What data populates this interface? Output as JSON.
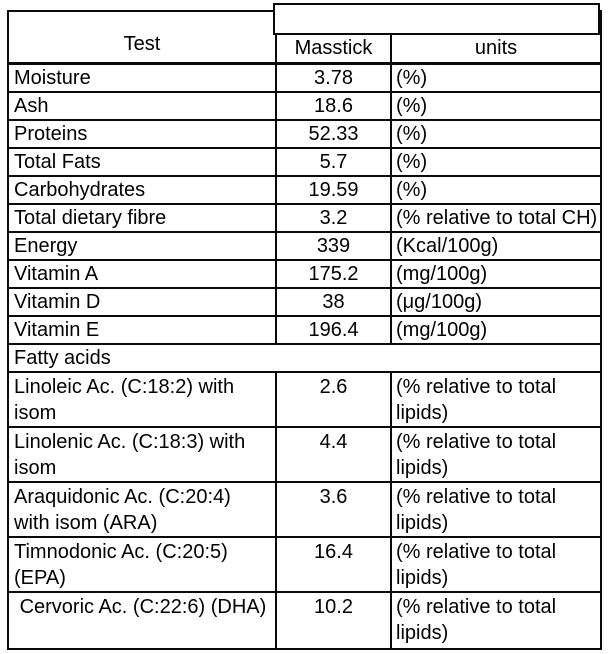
{
  "table": {
    "header": {
      "test": "Test",
      "value": "Masstick",
      "units": "units"
    },
    "rows": [
      {
        "test": "Moisture",
        "value": "3.78",
        "units": "(%)"
      },
      {
        "test": "Ash",
        "value": "18.6",
        "units": "(%)"
      },
      {
        "test": "Proteins",
        "value": "52.33",
        "units": "(%)"
      },
      {
        "test": "Total Fats",
        "value": "5.7",
        "units": "(%)"
      },
      {
        "test": "Carbohydrates",
        "value": "19.59",
        "units": "(%)"
      },
      {
        "test": "Total dietary fibre",
        "value": "3.2",
        "units": "(% relative to total CH)"
      },
      {
        "test": "Energy",
        "value": "339",
        "units": "(Kcal/100g)"
      },
      {
        "test": "Vitamin A",
        "value": "175.2",
        "units": "(mg/100g)"
      },
      {
        "test": "Vitamin D",
        "value": "38",
        "units": "(μg/100g)"
      },
      {
        "test": "Vitamin E",
        "value": "196.4",
        "units": "(mg/100g)"
      }
    ],
    "section_label": "Fatty acids",
    "fatty_rows": [
      {
        "test": "Linoleic Ac. (C:18:2) with isom",
        "value": "2.6",
        "units": "(% relative to total lipids)"
      },
      {
        "test": "Linolenic Ac. (C:18:3) with isom",
        "value": "4.4",
        "units": "(% relative to total lipids)"
      },
      {
        "test": "Araquidonic Ac. (C:20:4) with isom (ARA)",
        "value": "3.6",
        "units": "(% relative to total lipids)"
      },
      {
        "test": "Timnodonic Ac. (C:20:5) (EPA)",
        "value": "16.4",
        "units": "(% relative to total lipids)"
      },
      {
        "test": " Cervoric Ac. (C:22:6) (DHA)",
        "value": "10.2",
        "units": "(% relative to total lipids)"
      }
    ]
  }
}
